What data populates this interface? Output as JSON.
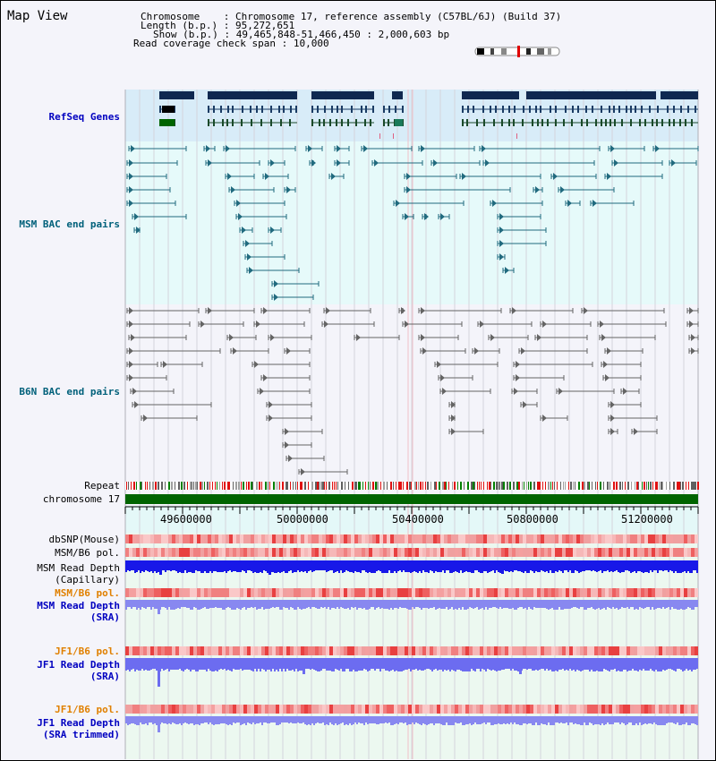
{
  "page_title": "Map View",
  "header": {
    "chromosome_label": "Chromosome",
    "chromosome_value": "Chromosome 17, reference assembly (C57BL/6J) (Build 37)",
    "length_label": "Length (b.p.)",
    "length_value": "95,272,651",
    "show_label": "Show (b.p.)",
    "show_value": "49,465,848-51,466,450 : 2,000,603 bp",
    "span_label": "Read coverage check span",
    "span_value": "10,000"
  },
  "tracks": {
    "refseq": "RefSeq Genes",
    "msm_bac": "MSM BAC end pairs",
    "b6n_bac": "B6N BAC end pairs",
    "repeat": "Repeat",
    "chromosome": "chromosome 17",
    "dbsnp": "dbSNP(Mouse)",
    "msm_b6_pol_1": "MSM/B6 pol.",
    "msm_read_depth_cap_1": "MSM Read Depth",
    "msm_read_depth_cap_2": "(Capillary)",
    "msm_b6_pol_2": "MSM/B6 pol.",
    "msm_read_depth_sra_1": "MSM Read Depth",
    "msm_read_depth_sra_2": "(SRA)",
    "jf1_b6_pol_1": "JF1/B6 pol.",
    "jf1_read_depth_sra_1": "JF1 Read Depth",
    "jf1_read_depth_sra_2": "(SRA)",
    "jf1_b6_pol_2": "JF1/B6 pol.",
    "jf1_read_depth_trim_1": "JF1 Read Depth",
    "jf1_read_depth_trim_2": "(SRA trimmed)"
  },
  "axis": {
    "ticks": [
      "49600000",
      "50000000",
      "50400000",
      "50800000",
      "51200000"
    ]
  },
  "colors": {
    "navy": "#0f2850",
    "teal": "#206a7e",
    "gray": "#646464",
    "refseq_bg": "#d8ecf8",
    "msm_bg": "#e6fafa",
    "label_blue": "#0000c0",
    "label_teal": "#00607a",
    "label_orange": "#e08000",
    "green": "#006400"
  }
}
